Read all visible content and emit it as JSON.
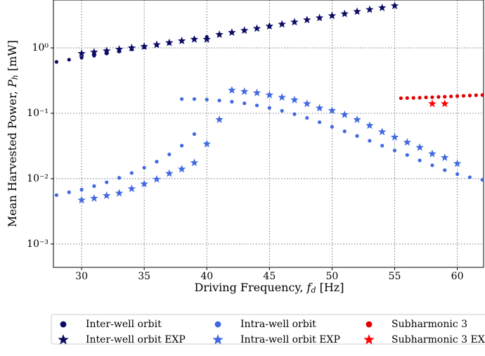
{
  "chart_data": {
    "type": "scatter",
    "xlabel_parts": [
      "Driving Frequency, ",
      "f",
      "d",
      " [Hz]"
    ],
    "ylabel_parts": [
      "Mean Harvested Power, ",
      "P",
      "h",
      " [mW]"
    ],
    "xlim": [
      27.75,
      62.1
    ],
    "ylim": [
      0.00044,
      5.4
    ],
    "log_y": true,
    "grid": true,
    "xticks": [
      30,
      35,
      40,
      45,
      50,
      55,
      60
    ],
    "yticks": [
      {
        "value": 0.001,
        "label": "10⁻³"
      },
      {
        "value": 0.01,
        "label": "10⁻²"
      },
      {
        "value": 0.1,
        "label": "10⁻¹"
      },
      {
        "value": 1,
        "label": "10⁰"
      }
    ],
    "legend_position": "below",
    "series": [
      {
        "name": "Inter-well orbit",
        "color": "#0b0b66",
        "marker": "circle",
        "x": [
          28,
          29,
          30,
          31,
          32,
          33,
          34,
          35,
          36,
          37,
          38,
          39,
          40,
          41,
          42,
          43,
          44,
          45,
          46,
          47,
          48,
          49,
          50,
          51,
          52,
          53,
          54,
          55
        ],
        "values": [
          0.61,
          0.66,
          0.71,
          0.76,
          0.82,
          0.88,
          0.95,
          1.02,
          1.1,
          1.18,
          1.27,
          1.37,
          1.47,
          1.58,
          1.71,
          1.83,
          1.97,
          2.12,
          2.29,
          2.46,
          2.65,
          2.85,
          3.07,
          3.3,
          3.55,
          3.83,
          4.11,
          4.42
        ]
      },
      {
        "name": "Inter-well orbit EXP",
        "color": "#0b0b66",
        "marker": "star",
        "x": [
          30,
          31,
          32,
          33,
          34,
          35,
          36,
          37,
          38,
          39,
          40,
          41,
          42,
          43,
          44,
          45,
          46,
          47,
          48,
          49,
          50,
          51,
          52,
          53,
          54,
          55
        ],
        "values": [
          0.82,
          0.86,
          0.9,
          0.95,
          1.0,
          1.05,
          1.12,
          1.2,
          1.28,
          1.35,
          1.35,
          1.6,
          1.72,
          1.85,
          1.98,
          2.15,
          2.3,
          2.48,
          2.68,
          2.88,
          3.1,
          3.32,
          3.6,
          3.85,
          4.1,
          4.4
        ]
      },
      {
        "name": "Intra-well orbit",
        "color": "#4169e1",
        "marker": "circle",
        "x": [
          28,
          29,
          30,
          31,
          32,
          33,
          34,
          35,
          36,
          37,
          38,
          39,
          38,
          39,
          40,
          41,
          42,
          43,
          44,
          45,
          46,
          47,
          48,
          49,
          50,
          51,
          52,
          53,
          54,
          55,
          56,
          57,
          58,
          59,
          60,
          61,
          62
        ],
        "values": [
          0.0056,
          0.0062,
          0.0068,
          0.0077,
          0.0088,
          0.0103,
          0.0122,
          0.0147,
          0.0182,
          0.0235,
          0.032,
          0.048,
          0.165,
          0.165,
          0.162,
          0.157,
          0.15,
          0.142,
          0.132,
          0.121,
          0.109,
          0.097,
          0.085,
          0.073,
          0.062,
          0.053,
          0.045,
          0.038,
          0.032,
          0.027,
          0.023,
          0.019,
          0.016,
          0.0135,
          0.0117,
          0.0105,
          0.0096
        ]
      },
      {
        "name": "Intra-well orbit EXP",
        "color": "#4169e1",
        "marker": "star",
        "x": [
          30,
          31,
          32,
          33,
          34,
          35,
          36,
          37,
          38,
          39,
          40,
          41,
          42,
          43,
          44,
          45,
          46,
          47,
          48,
          49,
          50,
          51,
          52,
          53,
          54,
          55,
          56,
          57,
          58,
          59,
          60
        ],
        "values": [
          0.0047,
          0.005,
          0.0055,
          0.006,
          0.007,
          0.0083,
          0.0098,
          0.012,
          0.014,
          0.0175,
          0.034,
          0.08,
          0.225,
          0.215,
          0.205,
          0.19,
          0.175,
          0.16,
          0.14,
          0.12,
          0.11,
          0.095,
          0.08,
          0.065,
          0.052,
          0.043,
          0.036,
          0.03,
          0.024,
          0.021,
          0.017
        ]
      },
      {
        "name": "Subharmonic 3",
        "color": "#e00000",
        "marker": "circle",
        "x": [
          55.5,
          56,
          56.5,
          57,
          57.5,
          58,
          58.5,
          59,
          59.5,
          60,
          60.5,
          61,
          61.5,
          62
        ],
        "values": [
          0.17,
          0.171,
          0.172,
          0.173,
          0.175,
          0.176,
          0.178,
          0.179,
          0.181,
          0.183,
          0.185,
          0.187,
          0.189,
          0.19
        ]
      },
      {
        "name": "Subharmonic 3 EXP",
        "color": "#ff0000",
        "marker": "star",
        "x": [
          58,
          59
        ],
        "values": [
          0.14,
          0.14
        ]
      }
    ]
  }
}
